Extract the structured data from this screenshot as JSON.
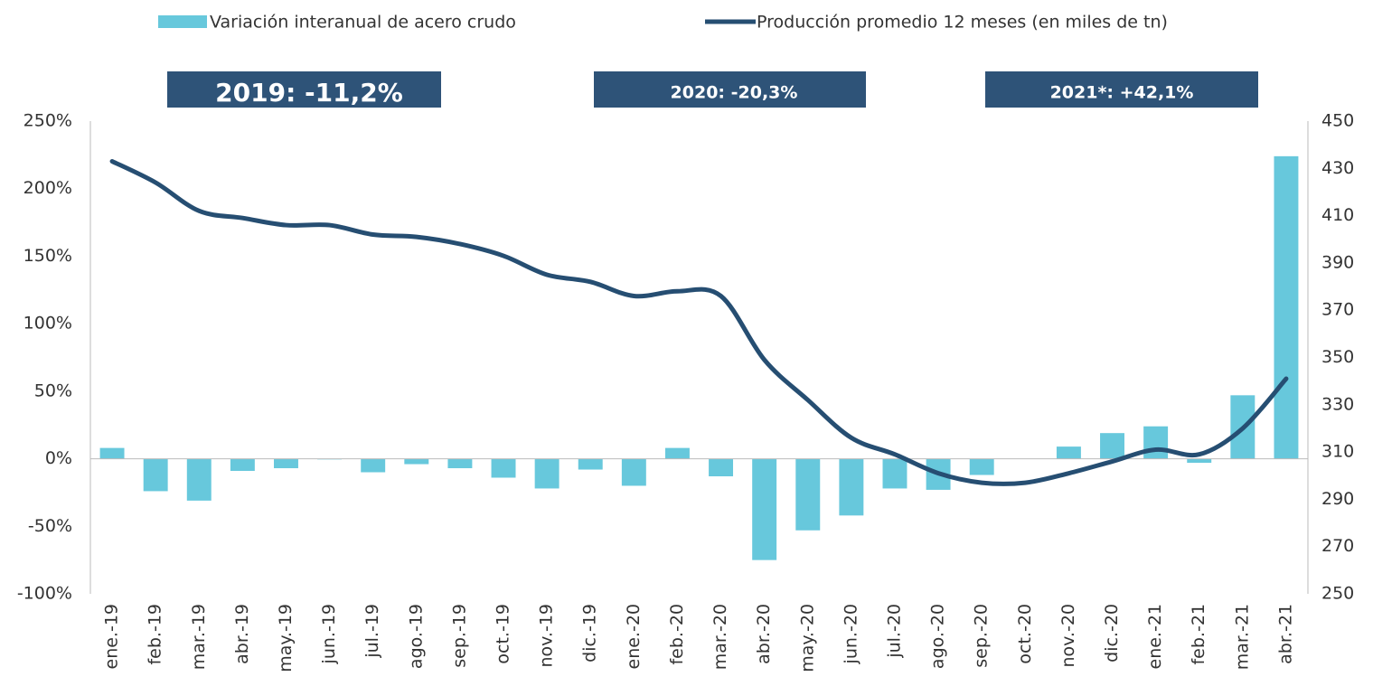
{
  "chart_data": {
    "type": "bar",
    "categories": [
      "ene.-19",
      "feb.-19",
      "mar.-19",
      "abr.-19",
      "may.-19",
      "jun.-19",
      "jul.-19",
      "ago.-19",
      "sep.-19",
      "oct.-19",
      "nov.-19",
      "dic.-19",
      "ene.-20",
      "feb.-20",
      "mar.-20",
      "abr.-20",
      "may.-20",
      "jun.-20",
      "jul.-20",
      "ago.-20",
      "sep.-20",
      "oct.-20",
      "nov.-20",
      "dic.-20",
      "ene.-21",
      "feb.-21",
      "mar.-21",
      "abr.-21"
    ],
    "series": [
      {
        "name": "Variación interanual de acero crudo",
        "type": "bar",
        "color": "#67c8dc",
        "values": [
          8,
          -24,
          -31,
          -9,
          -7,
          -0.5,
          -10,
          -4,
          -7,
          -14,
          -22,
          -8,
          -20,
          8,
          -13,
          -75,
          -53,
          -42,
          -22,
          -23,
          -12,
          0,
          9,
          19,
          24,
          -3,
          47,
          224
        ]
      },
      {
        "name": "Producción promedio 12 meses (en miles de tn)",
        "type": "line",
        "axis": "y2",
        "color": "#264e72",
        "values": [
          433,
          424,
          412,
          409,
          406,
          406,
          402,
          401,
          398,
          393,
          385,
          382,
          376,
          378,
          376,
          349,
          332,
          316,
          309,
          301,
          297,
          297,
          301,
          306,
          311,
          309,
          320,
          341
        ]
      }
    ],
    "annotations": [
      "2019: -11,2%",
      "2020: -20,3%",
      "2021*: +42,1%"
    ],
    "ylim": [
      -100,
      250
    ],
    "yticks": [
      {
        "value": -100,
        "label": "-100%"
      },
      {
        "value": -50,
        "label": "-50%"
      },
      {
        "value": 0,
        "label": "0%"
      },
      {
        "value": 50,
        "label": "50%"
      },
      {
        "value": 100,
        "label": "100%"
      },
      {
        "value": 150,
        "label": "150%"
      },
      {
        "value": 200,
        "label": "200%"
      },
      {
        "value": 250,
        "label": "250%"
      }
    ],
    "y2lim": [
      250,
      450
    ],
    "y2ticks": [
      250,
      270,
      290,
      310,
      330,
      350,
      370,
      390,
      410,
      430,
      450
    ],
    "legend": "top"
  }
}
